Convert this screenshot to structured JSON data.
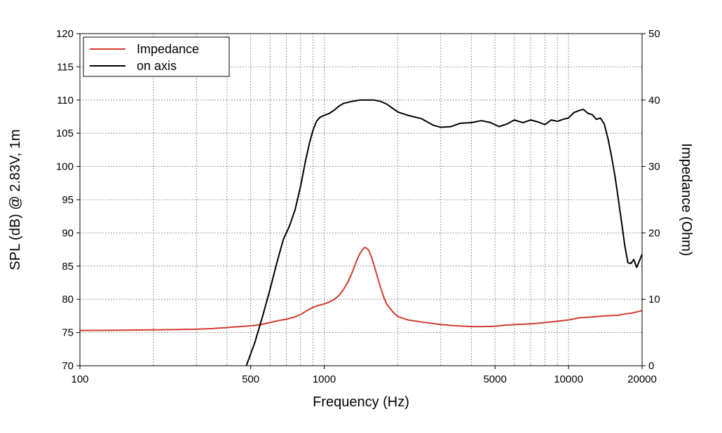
{
  "chart_data": {
    "type": "line",
    "title": "",
    "xlabel": "Frequency (Hz)",
    "ylabel": "SPL (dB) @ 2.83V, 1m",
    "y2label": "Impedance (Ohm)",
    "x_scale": "log",
    "xlim": [
      100,
      20000
    ],
    "ylim": [
      70,
      120
    ],
    "y2lim": [
      0,
      50
    ],
    "grid": true,
    "legend_position": "top-left",
    "x_tick_labels": [
      {
        "value": 100,
        "label": "100"
      },
      {
        "value": 500,
        "label": "500"
      },
      {
        "value": 1000,
        "label": "1000"
      },
      {
        "value": 5000,
        "label": "5000"
      },
      {
        "value": 10000,
        "label": "10000"
      },
      {
        "value": 20000,
        "label": "20000"
      }
    ],
    "y_ticks": [
      70,
      75,
      80,
      85,
      90,
      95,
      100,
      105,
      110,
      115,
      120
    ],
    "y2_ticks": [
      0,
      10,
      20,
      30,
      40,
      50
    ],
    "series": [
      {
        "name": "Impedance",
        "axis": "right",
        "color": "#d23b2f",
        "points": [
          [
            100,
            5.3
          ],
          [
            150,
            5.35
          ],
          [
            200,
            5.4
          ],
          [
            250,
            5.45
          ],
          [
            300,
            5.5
          ],
          [
            350,
            5.6
          ],
          [
            400,
            5.75
          ],
          [
            450,
            5.9
          ],
          [
            500,
            6.0
          ],
          [
            550,
            6.2
          ],
          [
            600,
            6.5
          ],
          [
            650,
            6.8
          ],
          [
            700,
            7.0
          ],
          [
            750,
            7.3
          ],
          [
            800,
            7.7
          ],
          [
            850,
            8.3
          ],
          [
            900,
            8.8
          ],
          [
            950,
            9.1
          ],
          [
            1000,
            9.3
          ],
          [
            1050,
            9.6
          ],
          [
            1100,
            10.0
          ],
          [
            1150,
            10.6
          ],
          [
            1200,
            11.5
          ],
          [
            1250,
            12.6
          ],
          [
            1300,
            14.0
          ],
          [
            1350,
            15.6
          ],
          [
            1400,
            16.9
          ],
          [
            1450,
            17.7
          ],
          [
            1480,
            17.8
          ],
          [
            1520,
            17.4
          ],
          [
            1560,
            16.4
          ],
          [
            1600,
            15.1
          ],
          [
            1650,
            13.4
          ],
          [
            1700,
            11.8
          ],
          [
            1750,
            10.4
          ],
          [
            1800,
            9.3
          ],
          [
            1900,
            8.2
          ],
          [
            2000,
            7.4
          ],
          [
            2200,
            6.9
          ],
          [
            2500,
            6.6
          ],
          [
            3000,
            6.2
          ],
          [
            3500,
            6.0
          ],
          [
            4000,
            5.9
          ],
          [
            4500,
            5.9
          ],
          [
            5000,
            5.95
          ],
          [
            5500,
            6.1
          ],
          [
            6000,
            6.2
          ],
          [
            7000,
            6.3
          ],
          [
            8000,
            6.5
          ],
          [
            9000,
            6.7
          ],
          [
            10000,
            6.9
          ],
          [
            11000,
            7.2
          ],
          [
            12000,
            7.3
          ],
          [
            13000,
            7.4
          ],
          [
            14000,
            7.5
          ],
          [
            15000,
            7.55
          ],
          [
            16000,
            7.6
          ],
          [
            17000,
            7.8
          ],
          [
            18000,
            7.9
          ],
          [
            19000,
            8.1
          ],
          [
            20000,
            8.3
          ]
        ]
      },
      {
        "name": "on axis",
        "axis": "left",
        "color": "#000000",
        "points": [
          [
            480,
            70.0
          ],
          [
            520,
            73.5
          ],
          [
            560,
            77.5
          ],
          [
            600,
            81.5
          ],
          [
            640,
            85.5
          ],
          [
            680,
            89.0
          ],
          [
            720,
            91.0
          ],
          [
            760,
            93.5
          ],
          [
            800,
            97.0
          ],
          [
            840,
            101.0
          ],
          [
            870,
            103.5
          ],
          [
            900,
            105.5
          ],
          [
            930,
            106.8
          ],
          [
            960,
            107.4
          ],
          [
            1000,
            107.7
          ],
          [
            1050,
            108.0
          ],
          [
            1100,
            108.5
          ],
          [
            1150,
            109.1
          ],
          [
            1200,
            109.5
          ],
          [
            1300,
            109.8
          ],
          [
            1400,
            110.0
          ],
          [
            1500,
            110.0
          ],
          [
            1600,
            110.0
          ],
          [
            1700,
            109.8
          ],
          [
            1800,
            109.4
          ],
          [
            2000,
            108.2
          ],
          [
            2200,
            107.7
          ],
          [
            2500,
            107.2
          ],
          [
            2800,
            106.2
          ],
          [
            3000,
            105.9
          ],
          [
            3300,
            106.0
          ],
          [
            3600,
            106.5
          ],
          [
            4000,
            106.6
          ],
          [
            4400,
            106.9
          ],
          [
            4800,
            106.6
          ],
          [
            5200,
            106.0
          ],
          [
            5600,
            106.4
          ],
          [
            6000,
            107.0
          ],
          [
            6500,
            106.6
          ],
          [
            7000,
            107.0
          ],
          [
            7500,
            106.7
          ],
          [
            8000,
            106.3
          ],
          [
            8500,
            107.0
          ],
          [
            9000,
            106.8
          ],
          [
            9500,
            107.1
          ],
          [
            10000,
            107.3
          ],
          [
            10500,
            108.1
          ],
          [
            11000,
            108.4
          ],
          [
            11500,
            108.6
          ],
          [
            12000,
            108.0
          ],
          [
            12500,
            107.8
          ],
          [
            13000,
            107.1
          ],
          [
            13500,
            107.3
          ],
          [
            14000,
            106.4
          ],
          [
            14500,
            104.2
          ],
          [
            15000,
            101.5
          ],
          [
            15500,
            98.5
          ],
          [
            16000,
            95.0
          ],
          [
            16500,
            91.5
          ],
          [
            17000,
            88.0
          ],
          [
            17500,
            85.5
          ],
          [
            18000,
            85.4
          ],
          [
            18500,
            86.0
          ],
          [
            19000,
            84.8
          ],
          [
            19500,
            85.8
          ],
          [
            20000,
            86.8
          ]
        ]
      }
    ]
  }
}
